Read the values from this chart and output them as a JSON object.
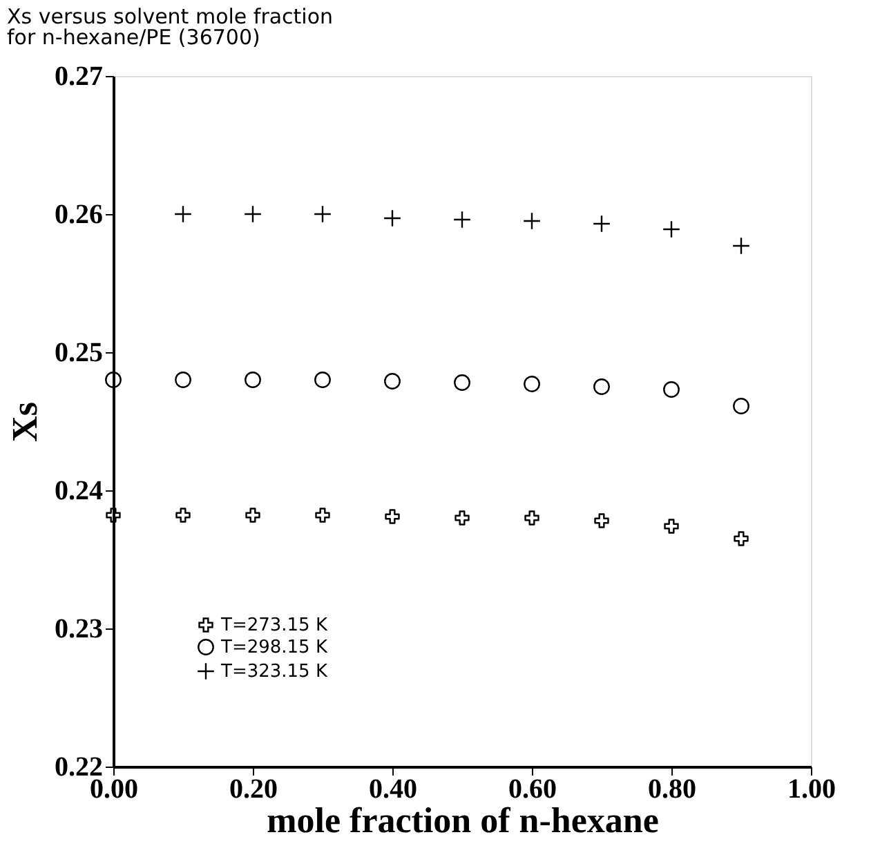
{
  "chart_data": {
    "type": "scatter",
    "title": [
      "Xs versus solvent mole fraction",
      "for n-hexane/PE (36700)"
    ],
    "xlabel": "mole fraction of n-hexane",
    "ylabel": "Xs",
    "xlim": [
      0,
      1
    ],
    "xticks": [
      {
        "value": 0,
        "label": "0.00"
      },
      {
        "value": 0.2,
        "label": "0.20"
      },
      {
        "value": 0.4,
        "label": "0.40"
      },
      {
        "value": 0.6,
        "label": "0.60"
      },
      {
        "value": 0.8,
        "label": "0.80"
      },
      {
        "value": 1,
        "label": "1.00"
      }
    ],
    "ylim": [
      0.22,
      0.27
    ],
    "yticks": [
      0.22,
      0.23,
      0.24,
      0.25,
      0.26,
      0.27
    ],
    "grid": false,
    "legend": "bottom left",
    "series": [
      {
        "name": "T=273.15  K",
        "color": "#000000",
        "marker": "cross",
        "x": [
          0,
          0.1,
          0.2,
          0.3,
          0.4,
          0.5,
          0.6,
          0.7,
          0.8,
          0.9
        ],
        "values": [
          0.2382,
          0.2382,
          0.2382,
          0.2382,
          0.2381,
          0.238,
          0.238,
          0.2378,
          0.2374,
          0.2365
        ]
      },
      {
        "name": "T=298.15  K",
        "color": "#000000",
        "marker": "circle",
        "x": [
          0,
          0.1,
          0.2,
          0.3,
          0.4,
          0.5,
          0.6,
          0.7,
          0.8,
          0.9
        ],
        "values": [
          0.248,
          0.248,
          0.248,
          0.248,
          0.2479,
          0.2478,
          0.2477,
          0.2475,
          0.2473,
          0.2461
        ]
      },
      {
        "name": "T=323.15  K",
        "color": "#000000",
        "marker": "plus",
        "x": [
          0.1,
          0.2,
          0.3,
          0.4,
          0.5,
          0.6,
          0.7,
          0.8,
          0.9
        ],
        "values": [
          0.26,
          0.26,
          0.26,
          0.2597,
          0.2596,
          0.2595,
          0.2593,
          0.2589,
          0.2577
        ]
      }
    ]
  }
}
